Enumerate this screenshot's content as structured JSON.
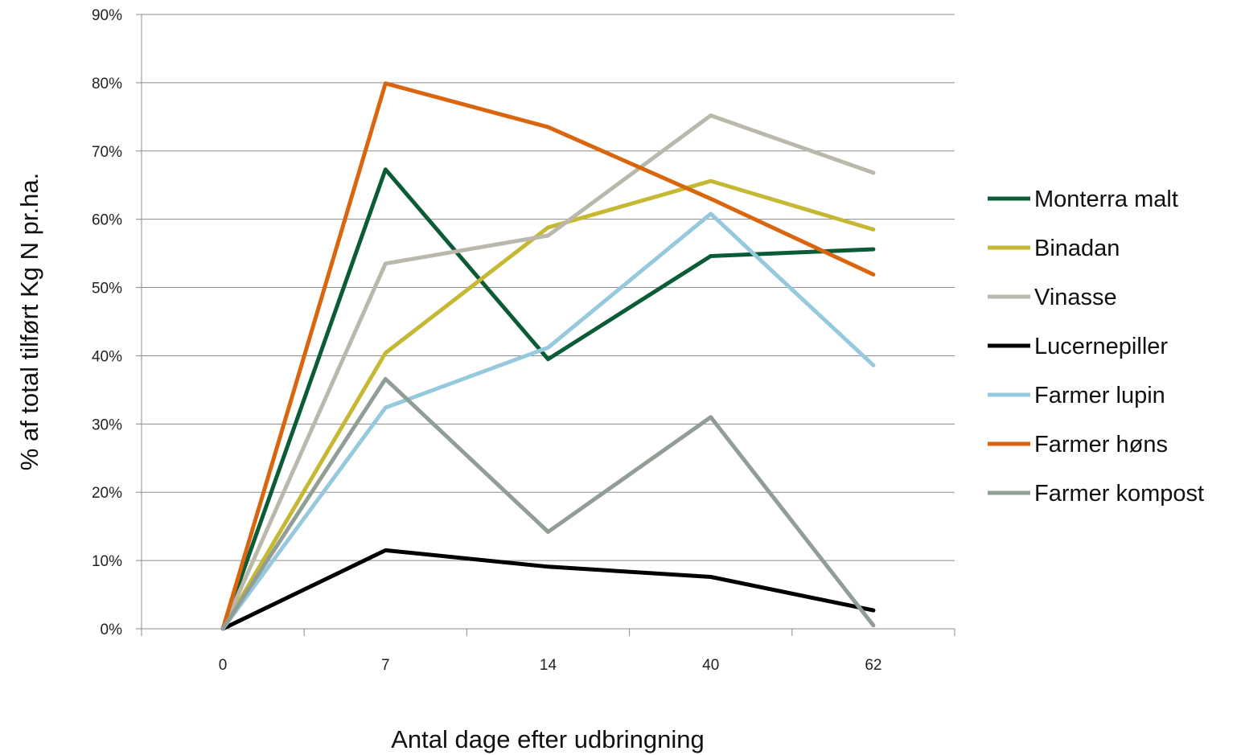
{
  "chart_data": {
    "type": "line",
    "title": "",
    "xlabel": "Antal dage efter udbringning",
    "ylabel": "% af total tilført Kg N pr.ha.",
    "categories": [
      "0",
      "7",
      "14",
      "40",
      "62"
    ],
    "ylim": [
      0,
      90
    ],
    "yticks": [
      0,
      10,
      20,
      30,
      40,
      50,
      60,
      70,
      80,
      90
    ],
    "ytick_labels": [
      "0%",
      "10%",
      "20%",
      "30%",
      "40%",
      "50%",
      "60%",
      "70%",
      "80%",
      "90%"
    ],
    "grid": "horizontal",
    "legend_position": "right",
    "series": [
      {
        "name": "Monterra malt",
        "color": "#0b5c36",
        "values": [
          0,
          67.3,
          39.5,
          54.6,
          55.6
        ]
      },
      {
        "name": "Binadan",
        "color": "#c5b833",
        "values": [
          0,
          40.4,
          58.8,
          65.6,
          58.5
        ]
      },
      {
        "name": "Vinasse",
        "color": "#bab8ab",
        "values": [
          0,
          53.5,
          57.6,
          75.2,
          66.8
        ]
      },
      {
        "name": "Lucernepiller",
        "color": "#000000",
        "values": [
          0,
          11.5,
          9.1,
          7.6,
          2.7
        ]
      },
      {
        "name": "Farmer lupin",
        "color": "#96c9de",
        "values": [
          0,
          32.4,
          41.2,
          60.8,
          38.6
        ]
      },
      {
        "name": "Farmer høns",
        "color": "#d9660f",
        "values": [
          0,
          79.9,
          73.5,
          63.0,
          51.9
        ]
      },
      {
        "name": "Farmer kompost",
        "color": "#919e95",
        "values": [
          0,
          36.6,
          14.2,
          31.0,
          0.5
        ]
      }
    ]
  }
}
